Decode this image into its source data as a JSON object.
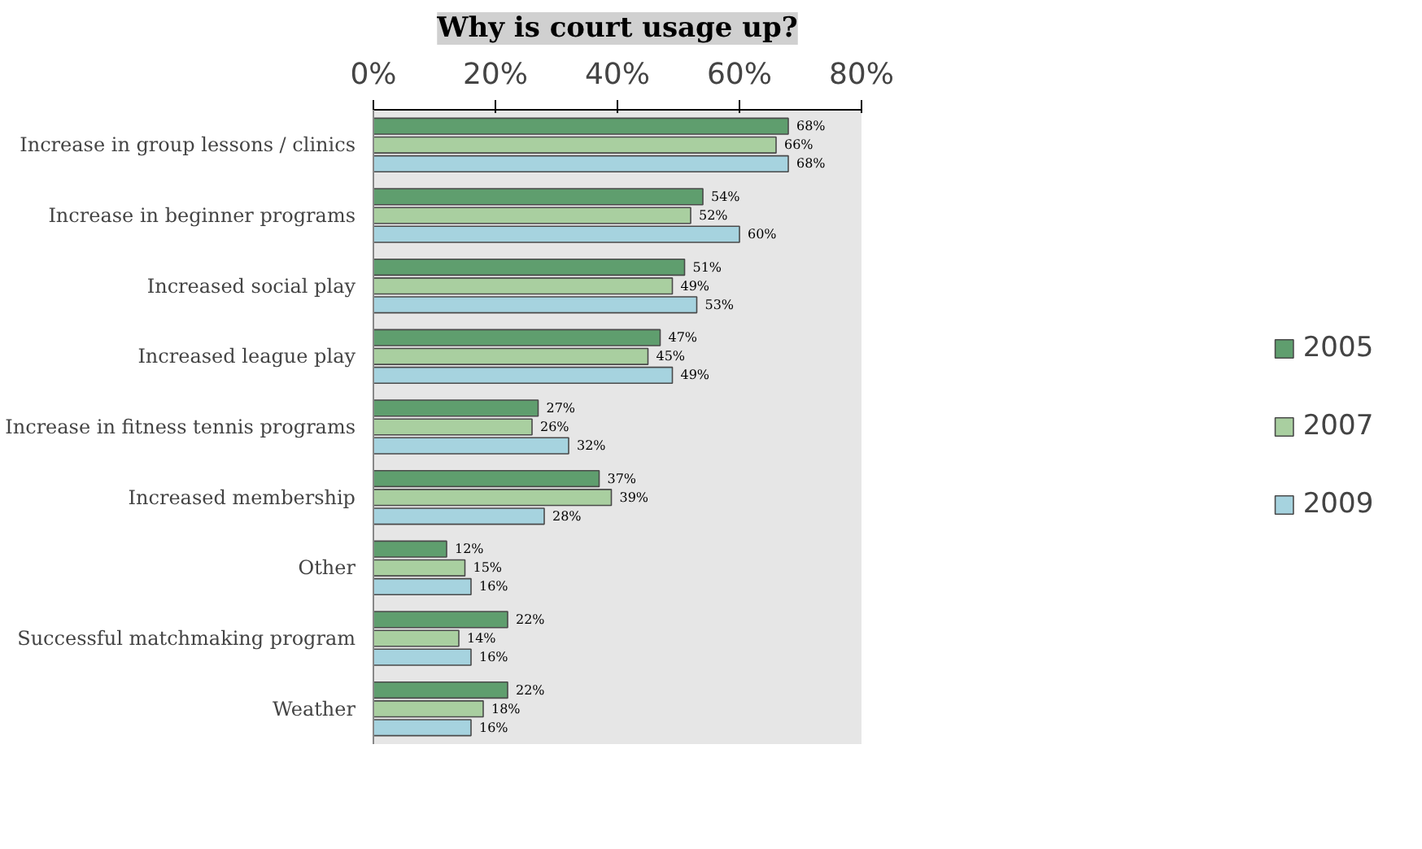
{
  "chart_data": {
    "type": "bar",
    "orientation": "horizontal",
    "title": "Why is court usage up?",
    "categories": [
      "Increase in group lessons / clinics",
      "Increase in beginner programs",
      "Increased social play",
      "Increased league play",
      "Increase in fitness tennis programs",
      "Increased membership",
      "Other",
      "Successful matchmaking program",
      "Weather"
    ],
    "series": [
      {
        "name": "2005",
        "color": "#5f9e6e",
        "values": [
          68,
          54,
          51,
          47,
          27,
          37,
          12,
          22,
          22
        ],
        "value_labels": [
          "68%",
          "54%",
          "51%",
          "47%",
          "27%",
          "37%",
          "12%",
          "22%",
          "22%"
        ]
      },
      {
        "name": "2007",
        "color": "#a9cfa0",
        "values": [
          66,
          52,
          49,
          45,
          26,
          39,
          15,
          14,
          18
        ],
        "value_labels": [
          "66%",
          "52%",
          "49%",
          "45%",
          "26%",
          "39%",
          "15%",
          "14%",
          "18%"
        ]
      },
      {
        "name": "2009",
        "color": "#a6d3df",
        "values": [
          68,
          60,
          53,
          49,
          32,
          28,
          16,
          16,
          16
        ],
        "value_labels": [
          "68%",
          "60%",
          "53%",
          "49%",
          "32%",
          "28%",
          "16%",
          "16%",
          "16%"
        ]
      }
    ],
    "xlim": [
      0,
      80
    ],
    "xticks": [
      {
        "value": 0,
        "label": "0%"
      },
      {
        "value": 20,
        "label": "20%"
      },
      {
        "value": 40,
        "label": "40%"
      },
      {
        "value": 60,
        "label": "60%"
      },
      {
        "value": 80,
        "label": "80%"
      }
    ],
    "grid": false,
    "legend": "right"
  }
}
